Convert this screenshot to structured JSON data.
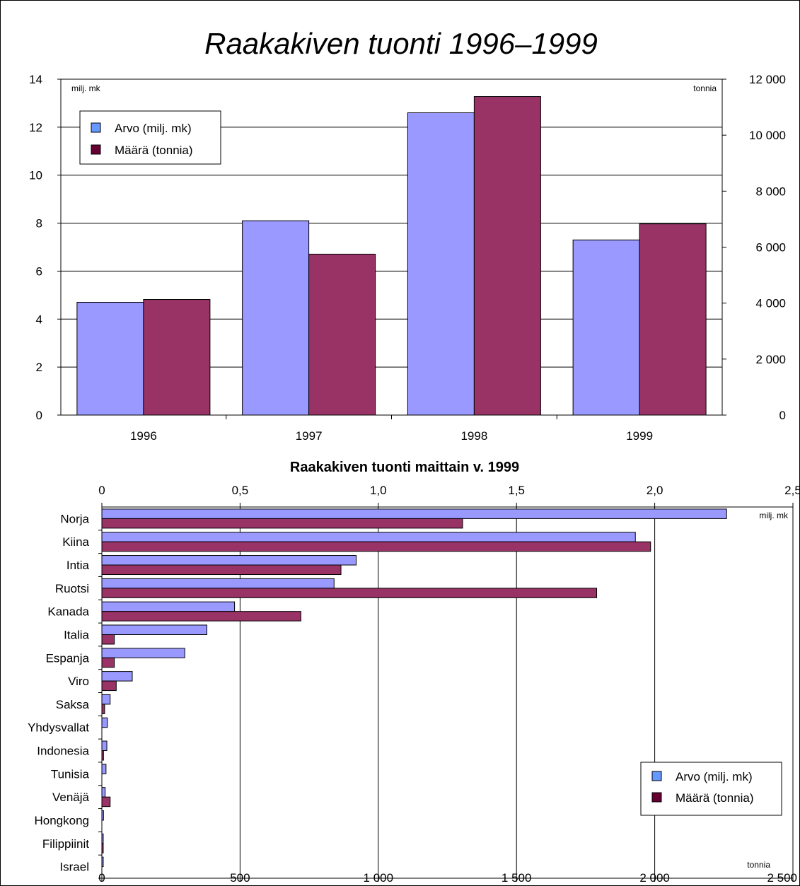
{
  "title": "Raakakiven tuonti 1996–1999",
  "colors": {
    "value": "#9999FF",
    "amount": "#993366",
    "legend_value": "#6699FF",
    "legend_amount": "#660033"
  },
  "chart_data": [
    {
      "type": "bar",
      "title": "Raakakiven tuonti 1996–1999",
      "categories": [
        "1996",
        "1997",
        "1998",
        "1999"
      ],
      "series": [
        {
          "name": "Arvo (milj. mk)",
          "axis": "left",
          "values": [
            4.7,
            8.1,
            12.6,
            7.3
          ]
        },
        {
          "name": "Määrä (tonnia)",
          "axis": "right",
          "values": [
            4130,
            5750,
            11380,
            6830
          ]
        }
      ],
      "left_axis": {
        "unit": "milj. mk",
        "min": 0,
        "max": 14,
        "ticks": [
          "0",
          "2",
          "4",
          "6",
          "8",
          "10",
          "12",
          "14"
        ]
      },
      "right_axis": {
        "unit": "tonnia",
        "min": 0,
        "max": 12000,
        "ticks": [
          "0",
          "2 000",
          "4 000",
          "6 000",
          "8 000",
          "10 000",
          "12 000"
        ]
      },
      "grid": true,
      "legend": "top-left"
    },
    {
      "type": "bar",
      "orientation": "horizontal",
      "title": "Raakakiven tuonti maittain v. 1999",
      "categories": [
        "Norja",
        "Kiina",
        "Intia",
        "Ruotsi",
        "Kanada",
        "Italia",
        "Espanja",
        "Viro",
        "Saksa",
        "Yhdysvallat",
        "Indonesia",
        "Tunisia",
        "Venäjä",
        "Hongkong",
        "Filippiinit",
        "Israel"
      ],
      "series": [
        {
          "name": "Arvo (milj. mk)",
          "axis": "top",
          "values": [
            2.26,
            1.93,
            0.92,
            0.84,
            0.48,
            0.38,
            0.3,
            0.11,
            0.03,
            0.02,
            0.018,
            0.015,
            0.012,
            0.006,
            0.005,
            0.005
          ]
        },
        {
          "name": "Määrä (tonnia)",
          "axis": "bottom",
          "values": [
            1305,
            1985,
            865,
            1790,
            720,
            45,
            45,
            52,
            10,
            0,
            6,
            0,
            30,
            0,
            5,
            0
          ]
        }
      ],
      "top_axis": {
        "unit": "milj. mk",
        "min": 0,
        "max": 2.5,
        "ticks": [
          "0",
          "0,5",
          "1,0",
          "1,5",
          "2,0",
          "2,5"
        ]
      },
      "bottom_axis": {
        "unit": "tonnia",
        "min": 0,
        "max": 2500,
        "ticks": [
          "0",
          "500",
          "1 000",
          "1 500",
          "2 000",
          "2 500"
        ]
      },
      "grid": true,
      "legend": "bottom-right"
    }
  ]
}
